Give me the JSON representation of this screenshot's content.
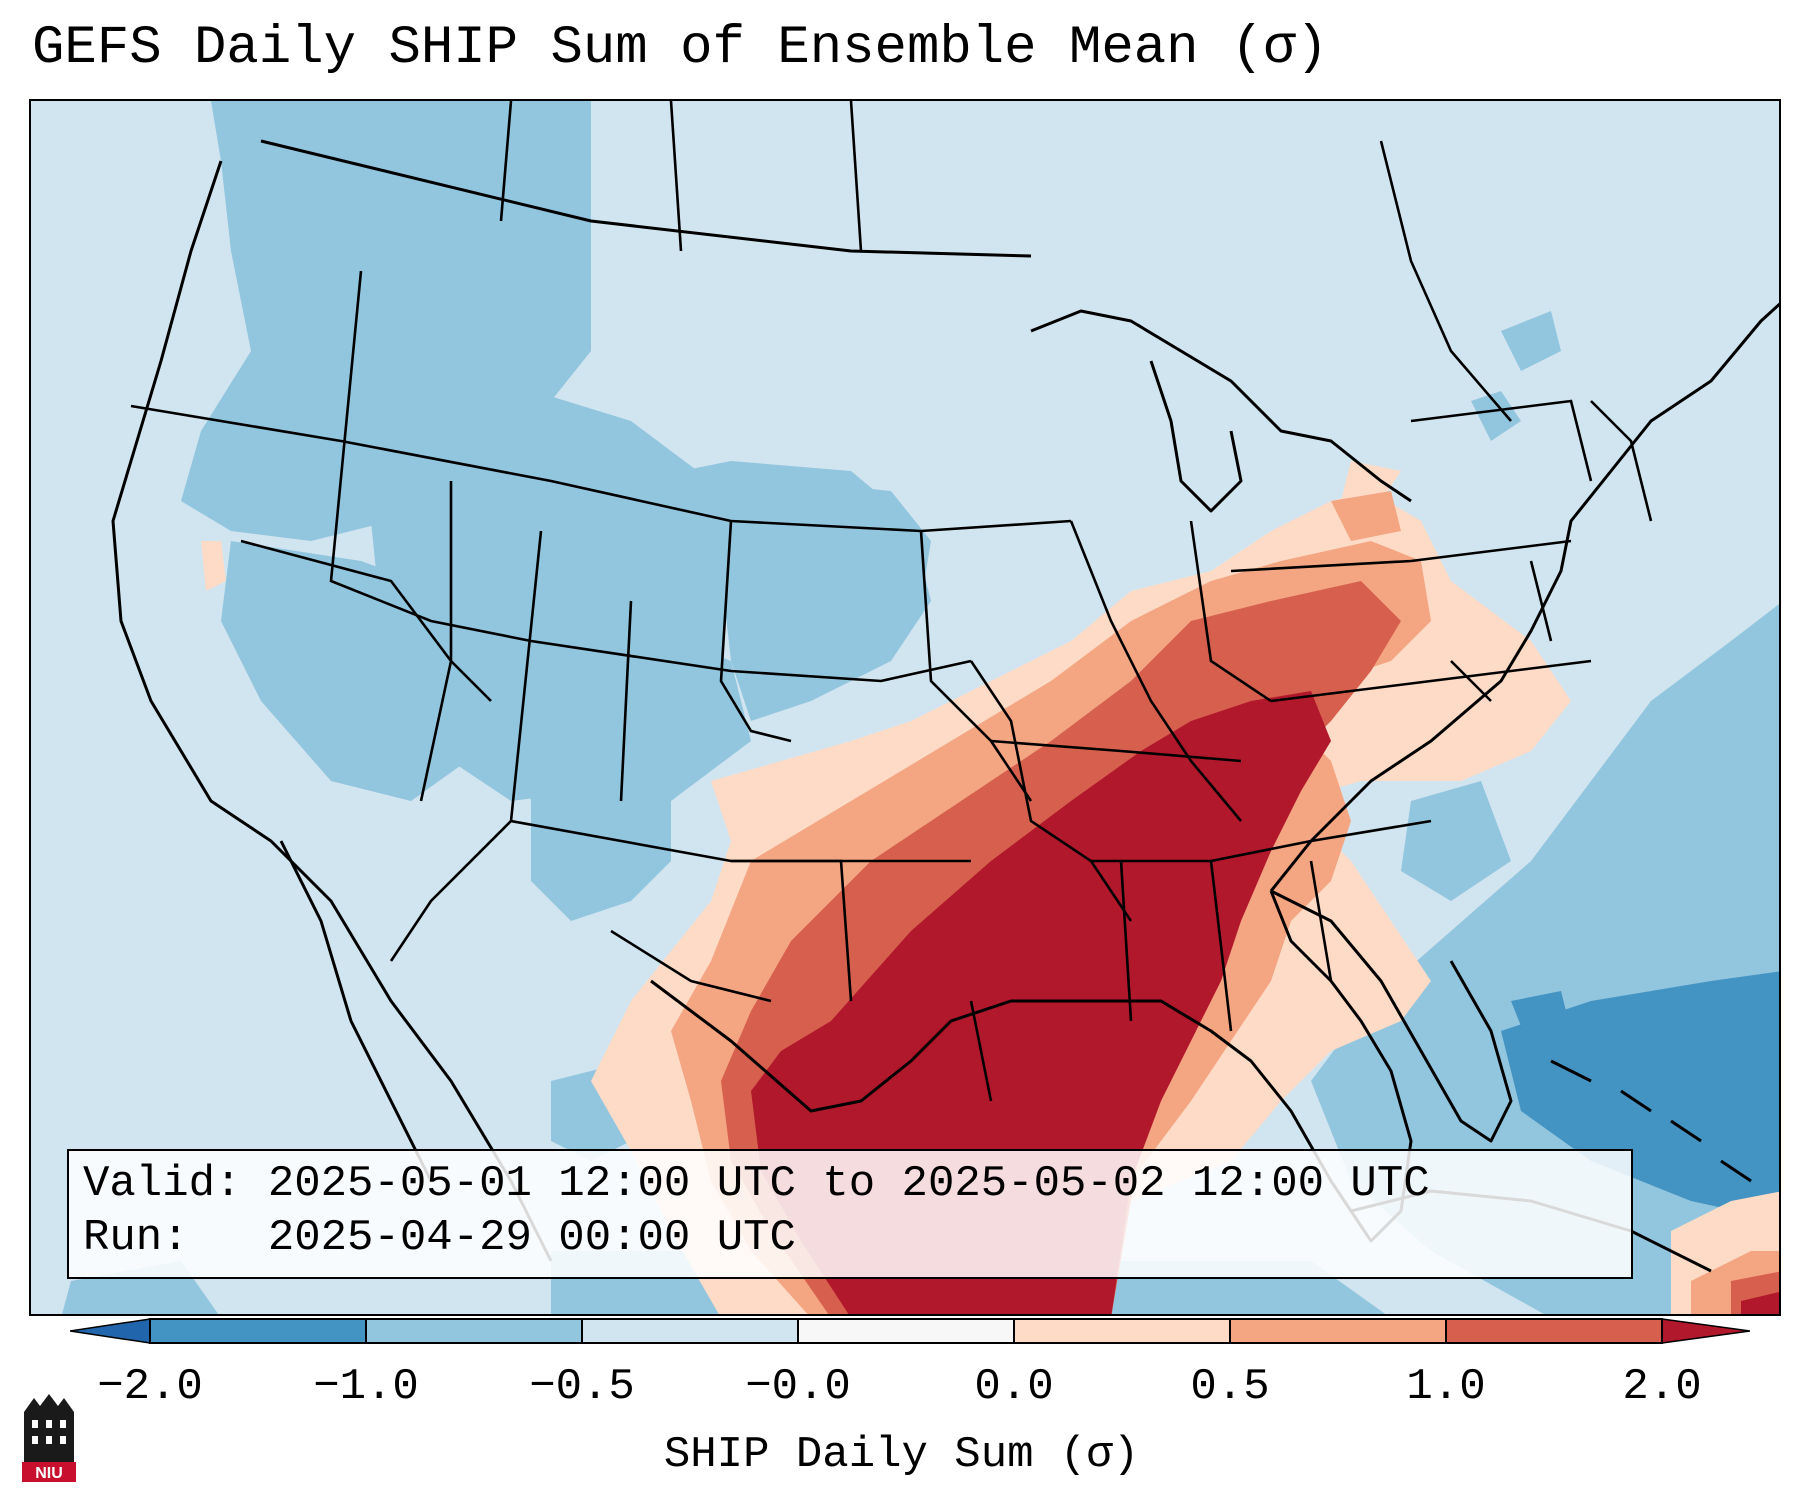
{
  "title": "GEFS Daily SHIP Sum of Ensemble Mean (σ)",
  "info": {
    "valid_label": "Valid:",
    "valid_value": "2025-05-01 12:00 UTC to 2025-05-02 12:00 UTC",
    "run_label": "Run:",
    "run_value": "2025-04-29 00:00 UTC"
  },
  "colorbar": {
    "label": "SHIP Daily Sum (σ)",
    "ticks": [
      "−2.0",
      "−1.0",
      "−0.5",
      "−0.0",
      "0.0",
      "0.5",
      "1.0",
      "2.0"
    ],
    "colors": [
      "#4393c3",
      "#92c5de",
      "#d1e5f0",
      "#f7f7f7",
      "#fddbc7",
      "#f4a582",
      "#d6604d"
    ],
    "under_color": "#2166ac",
    "over_color": "#b2182b"
  },
  "logo": {
    "text": "NIU"
  }
}
